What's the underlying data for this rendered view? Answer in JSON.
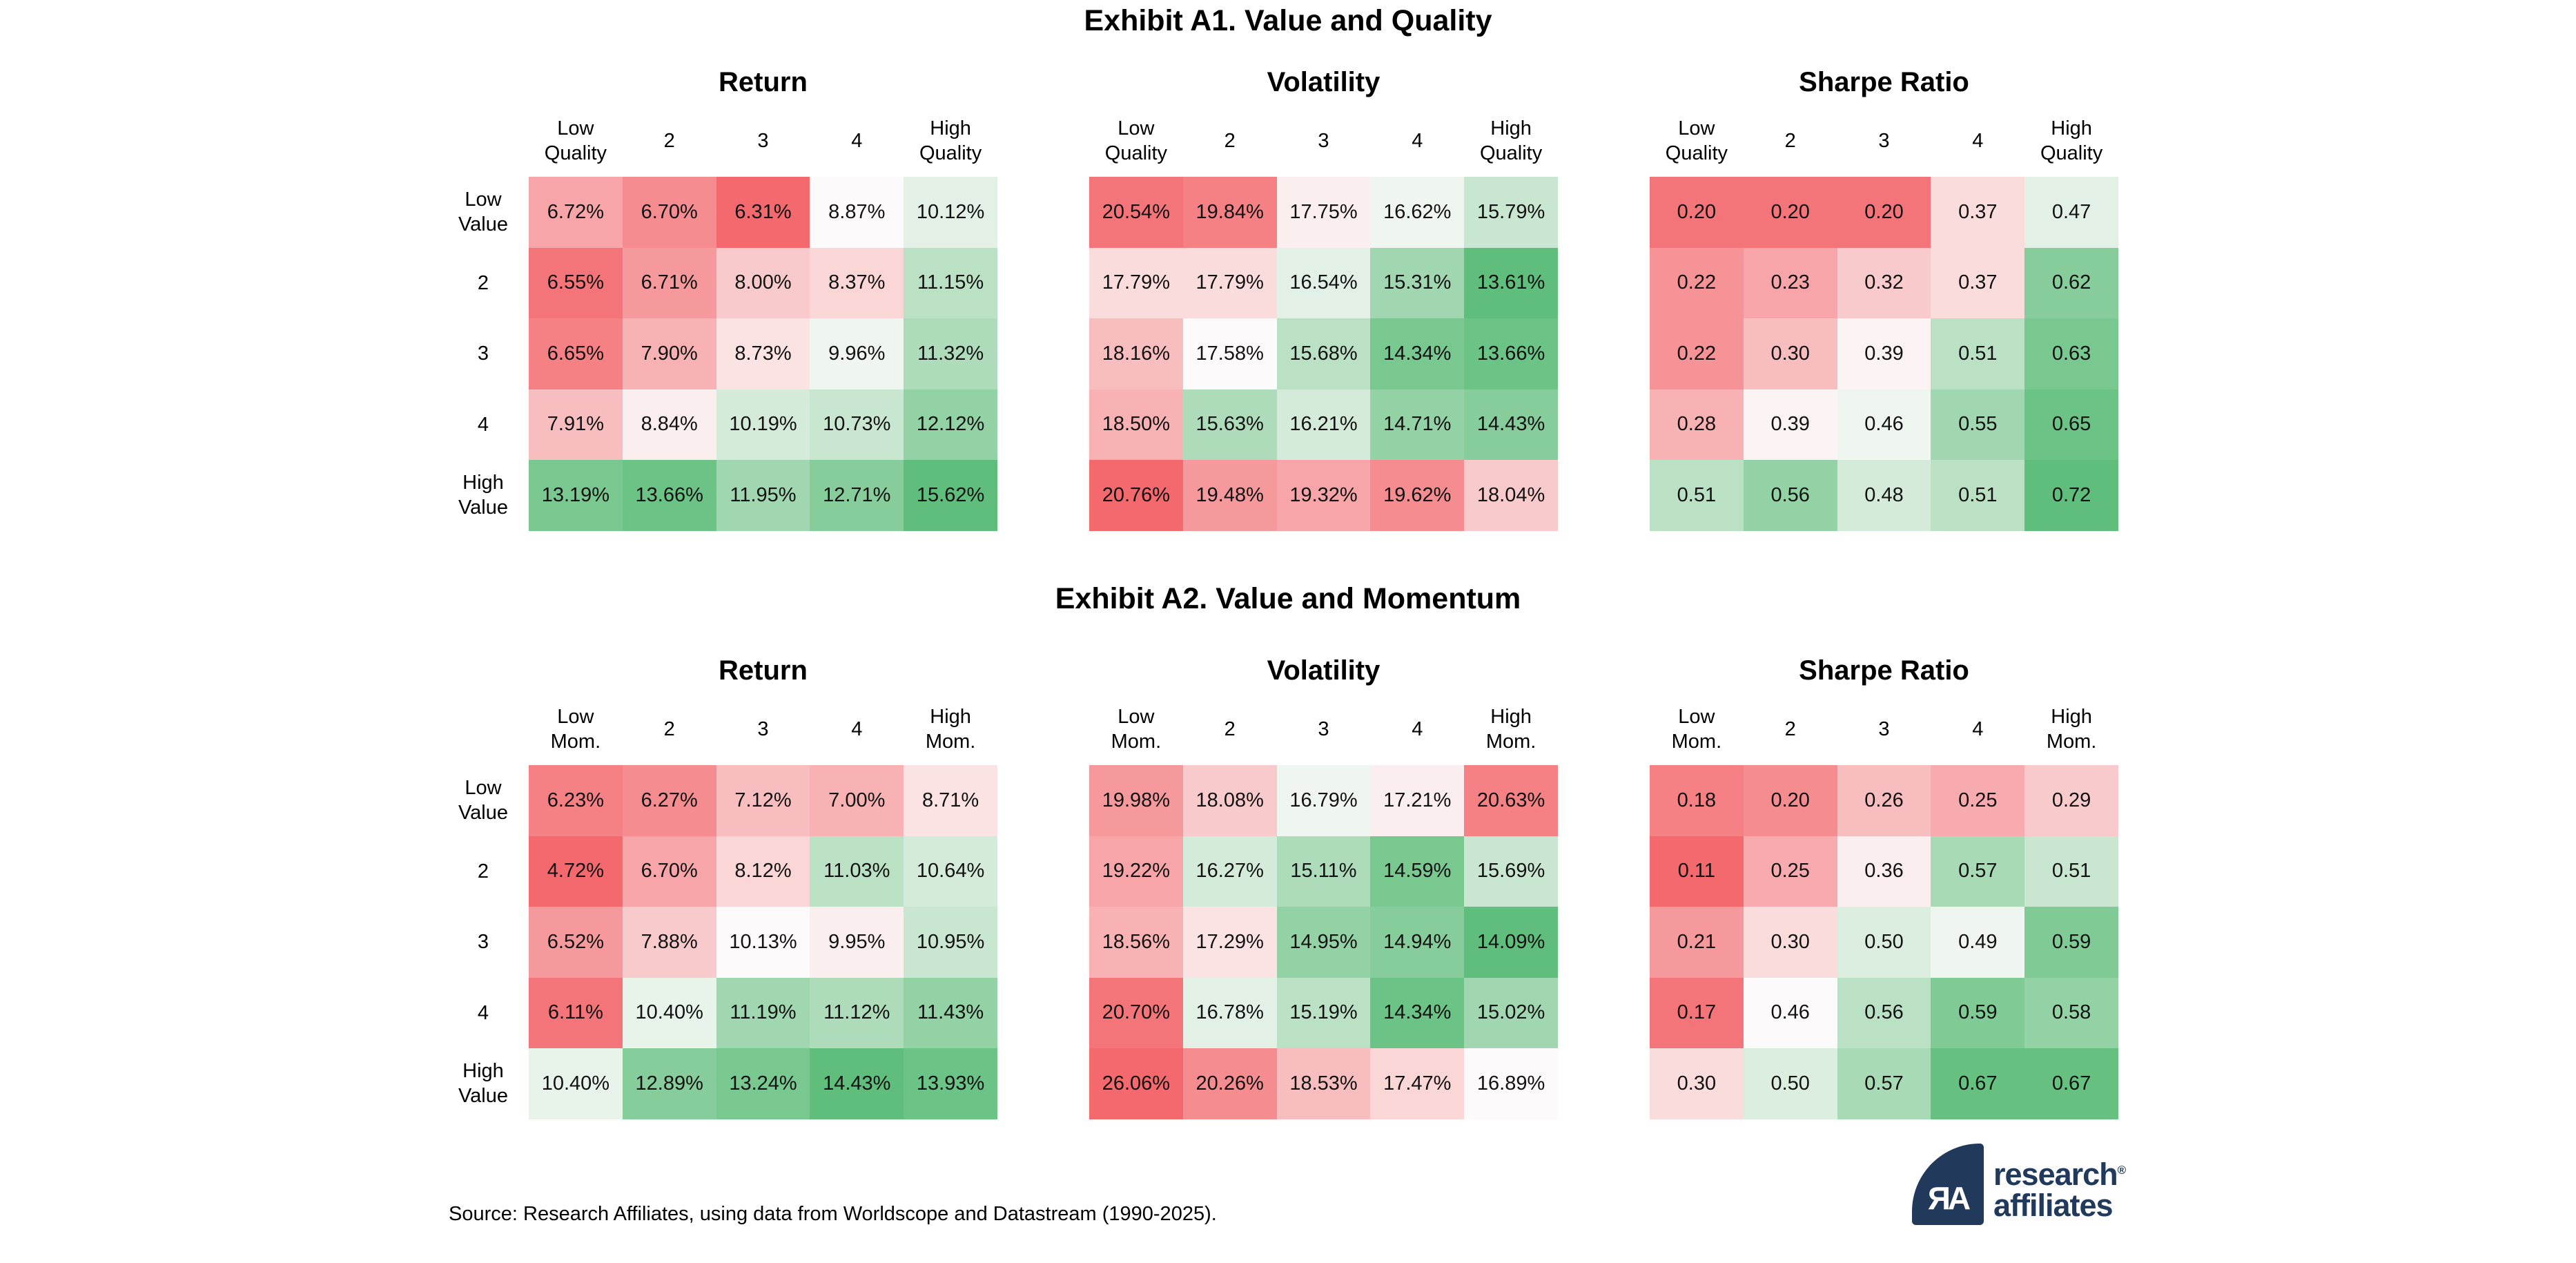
{
  "chart_data": {
    "type": "heatmap",
    "description": "Two exhibits of 5x5 double-sort portfolio heatmaps (rows: Value quintiles, columns: Quality or Momentum quintiles), three metrics each.",
    "color_scale": {
      "negative": "#f3696d",
      "mid": "#fcfafa",
      "positive": "#5fbe7b",
      "mapping": "rank-percentile within each table; white at median; Volatility inverted (low=green)"
    },
    "exhibits": [
      {
        "title": "Exhibit A1. Value and Quality",
        "row_labels": [
          "Low\nValue",
          "2",
          "3",
          "4",
          "High\nValue"
        ],
        "col_labels": [
          "Low\nQuality",
          "2",
          "3",
          "4",
          "High\nQuality"
        ],
        "tables": [
          {
            "title": "Return",
            "value_format": "percent",
            "higher_is_better": true,
            "rows": [
              [
                6.72,
                6.7,
                6.31,
                8.87,
                10.12
              ],
              [
                6.55,
                6.71,
                8.0,
                8.37,
                11.15
              ],
              [
                6.65,
                7.9,
                8.73,
                9.96,
                11.32
              ],
              [
                7.91,
                8.84,
                10.19,
                10.73,
                12.12
              ],
              [
                13.19,
                13.66,
                11.95,
                12.71,
                15.62
              ]
            ]
          },
          {
            "title": "Volatility",
            "value_format": "percent",
            "higher_is_better": false,
            "rows": [
              [
                20.54,
                19.84,
                17.75,
                16.62,
                15.79
              ],
              [
                17.79,
                17.79,
                16.54,
                15.31,
                13.61
              ],
              [
                18.16,
                17.58,
                15.68,
                14.34,
                13.66
              ],
              [
                18.5,
                15.63,
                16.21,
                14.71,
                14.43
              ],
              [
                20.76,
                19.48,
                19.32,
                19.62,
                18.04
              ]
            ]
          },
          {
            "title": "Sharpe Ratio",
            "value_format": "ratio",
            "higher_is_better": true,
            "rows": [
              [
                0.2,
                0.2,
                0.2,
                0.37,
                0.47
              ],
              [
                0.22,
                0.23,
                0.32,
                0.37,
                0.62
              ],
              [
                0.22,
                0.3,
                0.39,
                0.51,
                0.63
              ],
              [
                0.28,
                0.39,
                0.46,
                0.55,
                0.65
              ],
              [
                0.51,
                0.56,
                0.48,
                0.51,
                0.72
              ]
            ]
          }
        ]
      },
      {
        "title": "Exhibit A2. Value and Momentum",
        "row_labels": [
          "Low\nValue",
          "2",
          "3",
          "4",
          "High\nValue"
        ],
        "col_labels": [
          "Low\nMom.",
          "2",
          "3",
          "4",
          "High\nMom."
        ],
        "tables": [
          {
            "title": "Return",
            "value_format": "percent",
            "higher_is_better": true,
            "rows": [
              [
                6.23,
                6.27,
                7.12,
                7.0,
                8.71
              ],
              [
                4.72,
                6.7,
                8.12,
                11.03,
                10.64
              ],
              [
                6.52,
                7.88,
                10.13,
                9.95,
                10.95
              ],
              [
                6.11,
                10.4,
                11.19,
                11.12,
                11.43
              ],
              [
                10.4,
                12.89,
                13.24,
                14.43,
                13.93
              ]
            ]
          },
          {
            "title": "Volatility",
            "value_format": "percent",
            "higher_is_better": false,
            "rows": [
              [
                19.98,
                18.08,
                16.79,
                17.21,
                20.63
              ],
              [
                19.22,
                16.27,
                15.11,
                14.59,
                15.69
              ],
              [
                18.56,
                17.29,
                14.95,
                14.94,
                14.09
              ],
              [
                20.7,
                16.78,
                15.19,
                14.34,
                15.02
              ],
              [
                26.06,
                20.26,
                18.53,
                17.47,
                16.89
              ]
            ]
          },
          {
            "title": "Sharpe Ratio",
            "value_format": "ratio",
            "higher_is_better": true,
            "rows": [
              [
                0.18,
                0.2,
                0.26,
                0.25,
                0.29
              ],
              [
                0.11,
                0.25,
                0.36,
                0.57,
                0.51
              ],
              [
                0.21,
                0.3,
                0.5,
                0.49,
                0.59
              ],
              [
                0.17,
                0.46,
                0.56,
                0.59,
                0.58
              ],
              [
                0.3,
                0.5,
                0.57,
                0.67,
                0.67
              ]
            ]
          }
        ]
      }
    ]
  },
  "footer": {
    "source": "Source: Research Affiliates, using data from Worldscope and Datastream (1990-2025)."
  },
  "logo": {
    "monogram": "ЯA",
    "line1": "research",
    "registered_mark": "®",
    "line2": "affiliates",
    "color": "#21395b"
  }
}
